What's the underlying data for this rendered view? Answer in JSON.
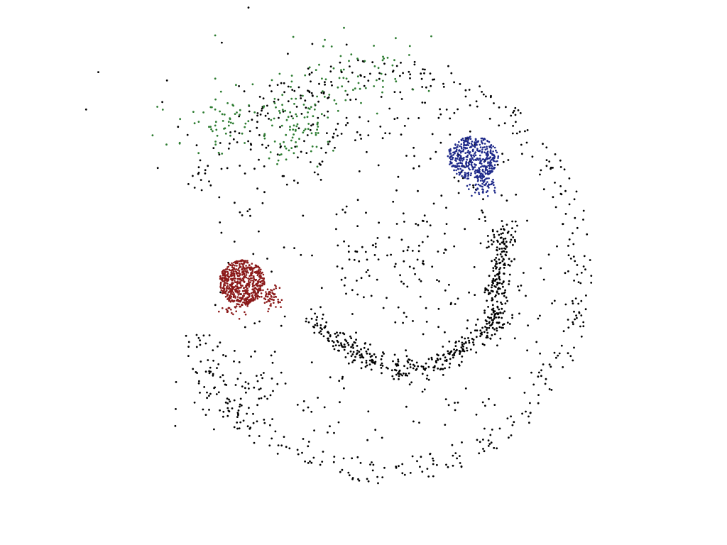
{
  "scene": {
    "description_visible_text": "",
    "background_color": "#ffffff",
    "point_clusters": [
      {
        "name": "red-cluster",
        "color": "#8b1a1a"
      },
      {
        "name": "blue-cluster",
        "color": "#1f2a8a"
      },
      {
        "name": "green-cluster",
        "color": "#2e7d32"
      },
      {
        "name": "black-points",
        "color": "#000000"
      }
    ]
  }
}
